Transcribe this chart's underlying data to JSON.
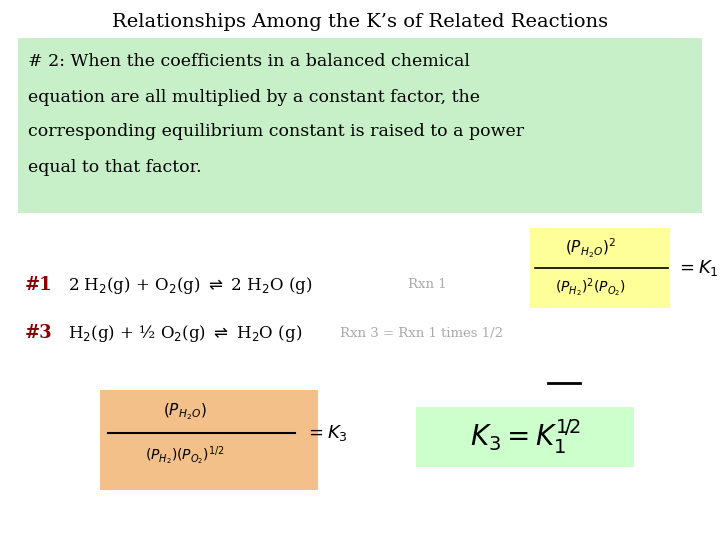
{
  "title": "Relationships Among the K’s of Related Reactions",
  "bg_color": "#ffffff",
  "green_box_color": "#c8f0c8",
  "yellow_box_color": "#ffff99",
  "orange_box_color": "#f4c08a",
  "light_green_box_color": "#ccffcc",
  "dark_red_color": "#8b0000",
  "black_color": "#000000",
  "gray_color": "#aaaaaa",
  "rule_lines": [
    "# 2: When the coefficients in a balanced chemical",
    "equation are all multiplied by a constant factor, the",
    "corresponding equilibrium constant is raised to a power",
    "equal to that factor."
  ]
}
